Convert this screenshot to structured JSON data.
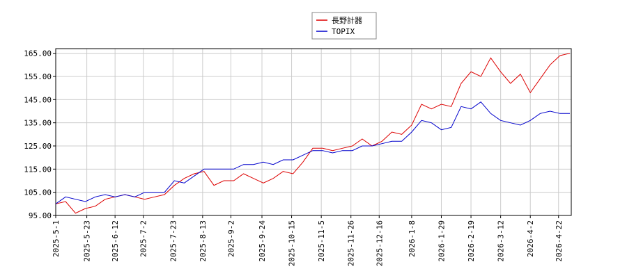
{
  "chart_data": {
    "type": "line",
    "x": [
      "2025-5-1",
      "2025-5-8",
      "2025-5-15",
      "2025-5-22",
      "2025-5-29",
      "2025-6-5",
      "2025-6-12",
      "2025-6-19",
      "2025-6-26",
      "2025-7-3",
      "2025-7-10",
      "2025-7-17",
      "2025-7-24",
      "2025-7-31",
      "2025-8-7",
      "2025-8-14",
      "2025-8-21",
      "2025-8-28",
      "2025-9-4",
      "2025-9-11",
      "2025-9-18",
      "2025-9-25",
      "2025-10-2",
      "2025-10-9",
      "2025-10-16",
      "2025-10-23",
      "2025-10-30",
      "2025-11-6",
      "2025-11-13",
      "2025-11-20",
      "2025-11-27",
      "2025-12-4",
      "2025-12-11",
      "2025-12-18",
      "2025-12-25",
      "2026-1-1",
      "2026-1-8",
      "2026-1-15",
      "2026-1-22",
      "2026-1-29",
      "2026-2-5",
      "2026-2-12",
      "2026-2-19",
      "2026-2-26",
      "2026-3-5",
      "2026-3-12",
      "2026-3-19",
      "2026-3-26",
      "2026-4-2",
      "2026-4-9",
      "2026-4-16",
      "2026-4-23",
      "2026-4-30"
    ],
    "series": [
      {
        "name": "長野計器",
        "color": "#dd0000",
        "values": [
          100,
          101,
          96,
          98,
          99,
          102,
          103,
          104,
          103,
          102,
          103,
          104,
          108,
          111,
          113,
          114,
          108,
          110,
          110,
          113,
          111,
          109,
          111,
          114,
          113,
          118,
          124,
          124,
          123,
          124,
          125,
          128,
          125,
          127,
          131,
          130,
          134,
          143,
          141,
          143,
          142,
          152,
          157,
          155,
          163,
          157,
          152,
          156,
          148,
          154,
          160,
          164,
          165
        ]
      },
      {
        "name": "TOPIX",
        "color": "#0000cc",
        "values": [
          100,
          103,
          102,
          101,
          103,
          104,
          103,
          104,
          103,
          105,
          105,
          105,
          110,
          109,
          112,
          115,
          115,
          115,
          115,
          117,
          117,
          118,
          117,
          119,
          119,
          121,
          123,
          123,
          122,
          123,
          123,
          125,
          125,
          126,
          127,
          127,
          131,
          136,
          135,
          132,
          133,
          142,
          141,
          144,
          139,
          136,
          135,
          134,
          136,
          139,
          140,
          139,
          139
        ]
      }
    ],
    "xlim": [
      "2025-5-1",
      "2026-5-1"
    ],
    "xticks": [
      "2025-5-1",
      "2025-5-23",
      "2025-6-12",
      "2025-7-2",
      "2025-7-23",
      "2025-8-13",
      "2025-9-2",
      "2025-9-24",
      "2025-10-15",
      "2025-11-5",
      "2025-11-26",
      "2025-12-16",
      "2026-1-8",
      "2026-1-29",
      "2026-2-19",
      "2026-3-12",
      "2026-4-2",
      "2026-4-22"
    ],
    "ylim": [
      95,
      167
    ],
    "yticks": [
      {
        "value": 95,
        "label": "95.00"
      },
      {
        "value": 105,
        "label": "105.00"
      },
      {
        "value": 115,
        "label": "115.00"
      },
      {
        "value": 125,
        "label": "125.00"
      },
      {
        "value": 135,
        "label": "135.00"
      },
      {
        "value": 145,
        "label": "145.00"
      },
      {
        "value": 155,
        "label": "155.00"
      },
      {
        "value": 165,
        "label": "165.00"
      }
    ],
    "grid": true,
    "legend": "top"
  }
}
